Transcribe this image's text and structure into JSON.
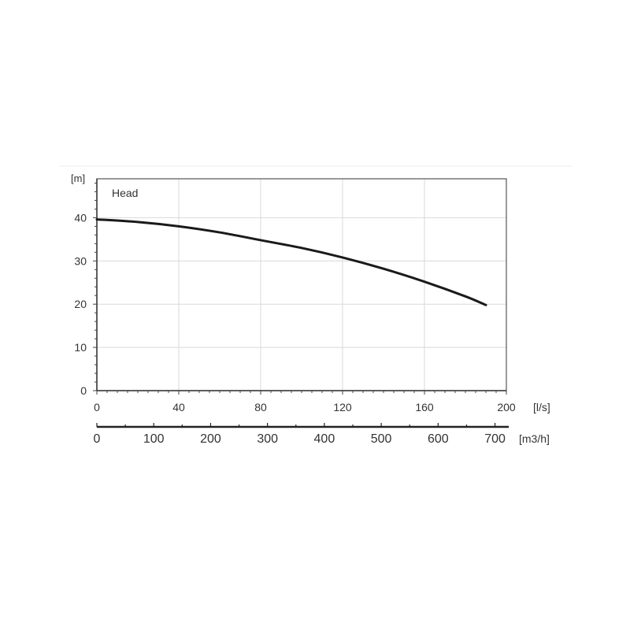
{
  "chart_data": {
    "type": "line",
    "title": "",
    "series_label": "Head",
    "ylabel": "[m]",
    "xlabel": "[l/s]",
    "x2label": "[m3/h]",
    "xlim": [
      0,
      200
    ],
    "ylim": [
      0,
      49
    ],
    "x2lim": [
      0,
      720
    ],
    "xticks": [
      0,
      40,
      80,
      120,
      160,
      200
    ],
    "yticks": [
      0,
      10,
      20,
      30,
      40
    ],
    "x2ticks": [
      0,
      100,
      200,
      300,
      400,
      500,
      600,
      700
    ],
    "grid": true,
    "colors": {
      "line": "#1a1a1a",
      "grid": "#d9d9d9",
      "frame": "#555555"
    },
    "series": [
      {
        "x": [
          0,
          20,
          40,
          60,
          80,
          100,
          120,
          140,
          160,
          180,
          190
        ],
        "y": [
          39.6,
          39.0,
          38.0,
          36.6,
          34.8,
          33.0,
          30.8,
          28.2,
          25.2,
          21.8,
          19.8
        ]
      }
    ]
  }
}
